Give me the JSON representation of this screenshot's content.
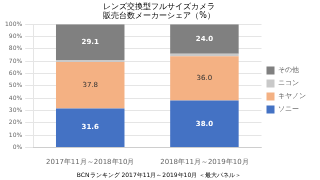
{
  "chart_data": {
    "type": "bar",
    "title": "レンズ交換型フルサイズカメラ\n販売台数メーカーシェア（%）",
    "annotations": [
      "BCNランキング 2017年11月～2019年10月 ＜最大パネル＞"
    ],
    "categories": [
      "2017年11月～2018年10月",
      "2018年11月～2019年10月"
    ],
    "series": [
      {
        "name": "ソニー",
        "color": "#4472C4",
        "values": [
          31.6,
          38.0
        ],
        "value_labels": [
          "31.6",
          "38.0"
        ],
        "data_labels": true
      },
      {
        "name": "キヤノン",
        "color": "#F4B183",
        "values": [
          37.8,
          36.0
        ],
        "value_labels": [
          "37.8",
          "36.0"
        ],
        "data_labels": true
      },
      {
        "name": "ニコン",
        "color": "#C9C9C9",
        "values": [
          1.5,
          2.0
        ]
      },
      {
        "name": "その他",
        "color": "#808080",
        "values": [
          29.1,
          24.0
        ],
        "value_labels": [
          "29.1",
          "24.0"
        ],
        "data_labels": true
      }
    ],
    "stacked": true,
    "ylim": [
      0,
      100
    ],
    "yticks": [
      {
        "value": 0,
        "label": "0%"
      },
      {
        "value": 10,
        "label": "10%"
      },
      {
        "value": 20,
        "label": "20%"
      },
      {
        "value": 30,
        "label": "30%"
      },
      {
        "value": 40,
        "label": "40%"
      },
      {
        "value": 50,
        "label": "50%"
      },
      {
        "value": 60,
        "label": "60%"
      },
      {
        "value": 70,
        "label": "70%"
      },
      {
        "value": 80,
        "label": "80%"
      },
      {
        "value": 90,
        "label": "90%"
      },
      {
        "value": 100,
        "label": "100%"
      }
    ],
    "grid": true,
    "legend": "right"
  }
}
